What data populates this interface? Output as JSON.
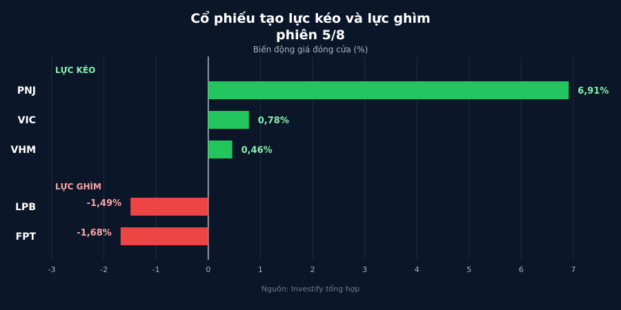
{
  "colors": {
    "background": "#0b1728",
    "positive": "#22c55e",
    "negative": "#ef4444",
    "positive_label": "#86efac",
    "negative_label": "#fca5a5",
    "grid": "#1f2d40",
    "zero_line": "#e5e7eb",
    "text": "#ffffff",
    "muted": "#aab4c3"
  },
  "chart_data": {
    "type": "bar",
    "orientation": "horizontal",
    "title_lines": [
      "Cổ phiếu tạo lực kéo và lực ghìm",
      "phiên 5/8"
    ],
    "subtitle": "Biến động giá đóng cửa (%)",
    "source": "Nguồn: Investify tổng hợp",
    "xlim": [
      -3,
      7
    ],
    "x_ticks": [
      -3,
      -2,
      -1,
      0,
      1,
      2,
      3,
      4,
      5,
      6,
      7
    ],
    "grid": true,
    "groups": [
      {
        "label": "LỰC KÉO",
        "items": [
          {
            "category": "PNJ",
            "value": 6.91,
            "label": "6,91%"
          },
          {
            "category": "VIC",
            "value": 0.78,
            "label": "0,78%"
          },
          {
            "category": "VHM",
            "value": 0.46,
            "label": "0,46%"
          }
        ]
      },
      {
        "label": "LỰC GHÌM",
        "items": [
          {
            "category": "LPB",
            "value": -1.49,
            "label": "-1,49%"
          },
          {
            "category": "FPT",
            "value": -1.68,
            "label": "-1,68%"
          }
        ]
      }
    ]
  }
}
